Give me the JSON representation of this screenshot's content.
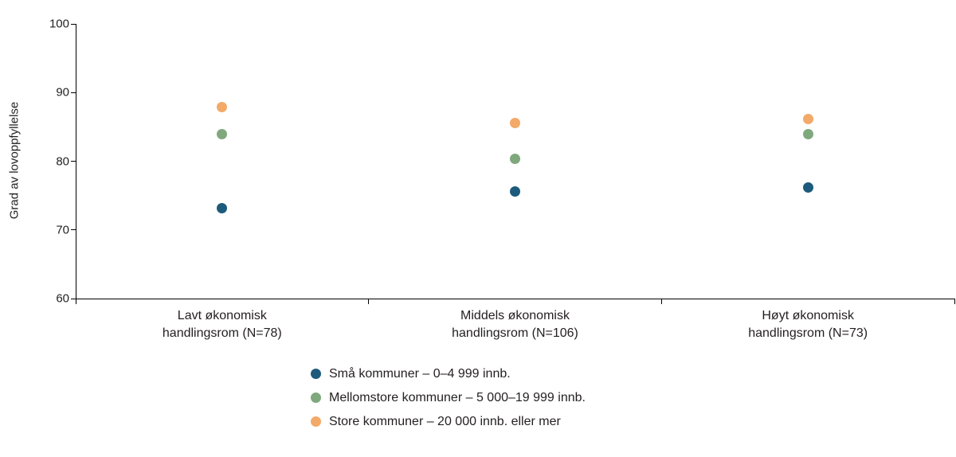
{
  "chart_data": {
    "type": "scatter",
    "title": "",
    "ylabel": "Grad av lovoppfyllelse",
    "xlabel": "",
    "ylim": [
      60,
      100
    ],
    "yticks": [
      100,
      90,
      80,
      70,
      60
    ],
    "grid": false,
    "legend_position": "bottom",
    "categories": [
      "Lavt økonomisk\nhandlingsrom (N=78)",
      "Middels økonomisk\nhandlingsrom (N=106)",
      "Høyt økonomisk\nhandlingsrom (N=73)"
    ],
    "series": [
      {
        "name": "Små kommuner – 0–4 999 innb.",
        "color": "#1d5b7c",
        "values": [
          73.2,
          75.6,
          76.2
        ]
      },
      {
        "name": "Mellomstore kommuner – 5 000–19 999 innb.",
        "color": "#80a87d",
        "values": [
          83.9,
          80.3,
          83.9
        ]
      },
      {
        "name": "Store kommuner – 20 000 innb. eller mer",
        "color": "#f3a968",
        "values": [
          87.9,
          85.6,
          86.2
        ]
      }
    ]
  }
}
